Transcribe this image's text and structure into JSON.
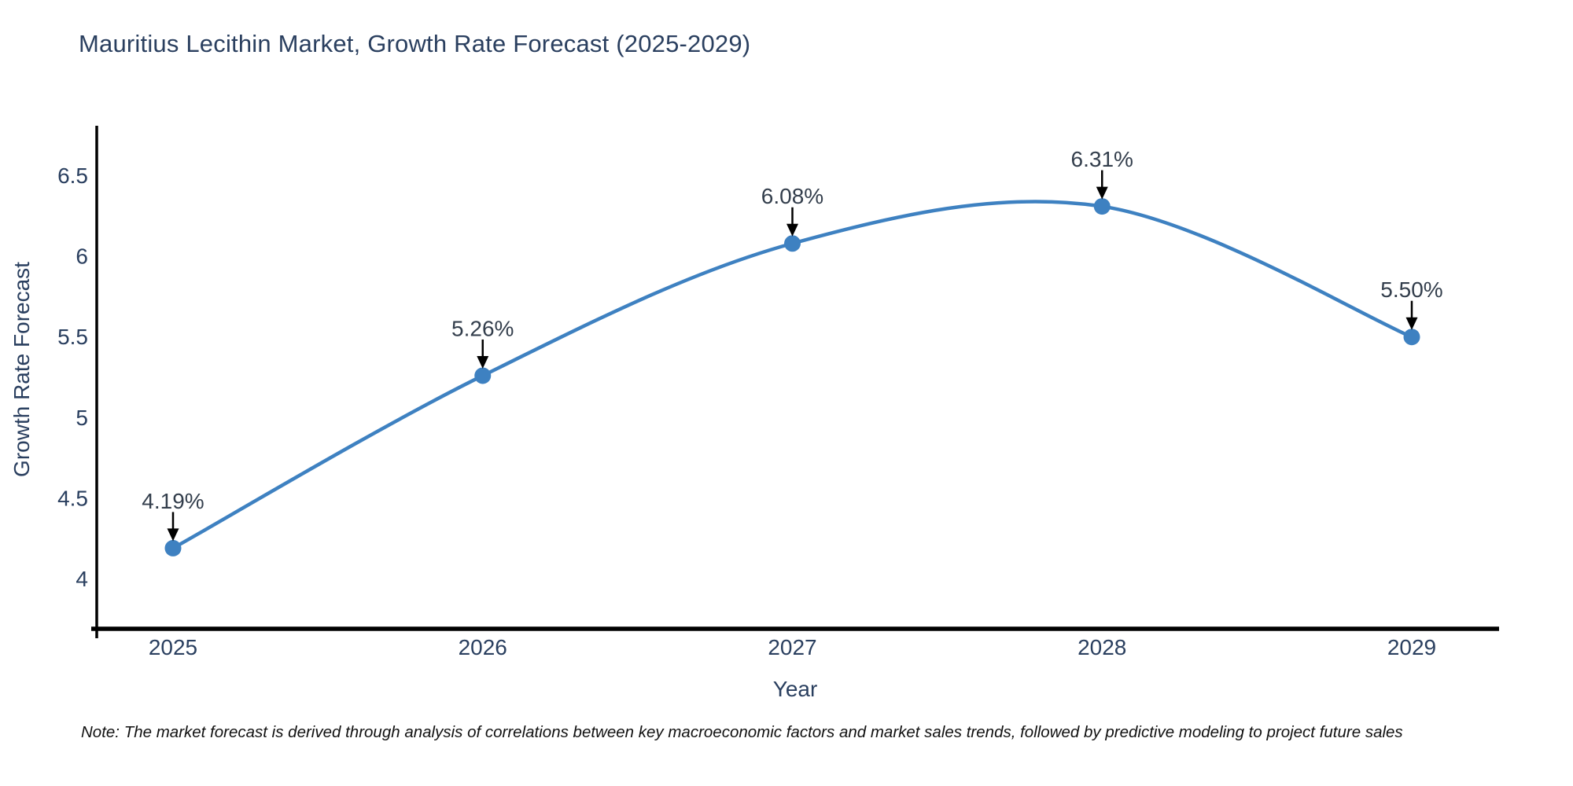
{
  "title": "Mauritius Lecithin Market, Growth Rate Forecast (2025-2029)",
  "note": "Note: The market forecast is derived through analysis of correlations between key macroeconomic factors and market sales trends, followed by predictive modeling to project future sales",
  "chart_data": {
    "type": "line",
    "title": "Mauritius Lecithin Market, Growth Rate Forecast (2025-2029)",
    "xlabel": "Year",
    "ylabel": "Growth Rate Forecast",
    "categories": [
      "2025",
      "2026",
      "2027",
      "2028",
      "2029"
    ],
    "series": [
      {
        "name": "Growth Rate Forecast",
        "values": [
          4.19,
          5.26,
          6.08,
          6.31,
          5.5
        ],
        "point_labels": [
          "4.19%",
          "5.26%",
          "6.08%",
          "6.31%",
          "5.50%"
        ]
      }
    ],
    "yticks": [
      4,
      4.5,
      5,
      5.5,
      6,
      6.5
    ],
    "ylim": [
      3.69,
      6.81
    ],
    "line_shape": "spline",
    "grid": false,
    "legend_position": "none",
    "colors": {
      "line": "#3e81c1",
      "marker": "#3e81c1",
      "text": "#2a3f5f",
      "annotation_text": "#333e4c",
      "arrow": "#000000",
      "axis": "#000000",
      "background": "#ffffff"
    }
  }
}
